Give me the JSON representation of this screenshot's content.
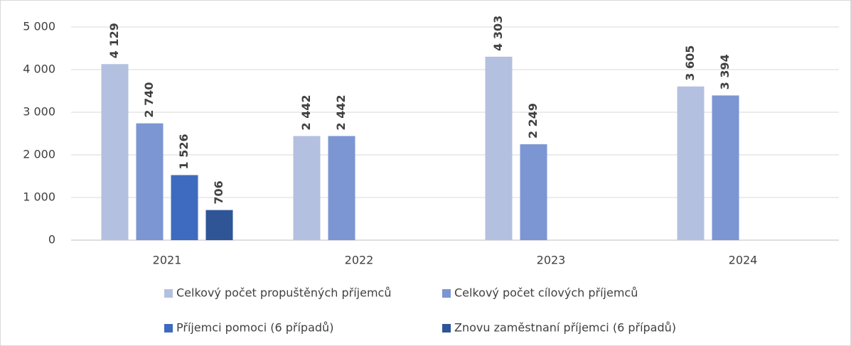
{
  "chart_data": {
    "type": "bar",
    "categories": [
      "2021",
      "2022",
      "2023",
      "2024"
    ],
    "series": [
      {
        "name": "Celkový počet propuštěných příjemců",
        "color": "#b4c0e0",
        "values": [
          4129,
          2442,
          4303,
          3605
        ],
        "value_labels": [
          "4 129",
          "2 442",
          "4 303",
          "3 605"
        ]
      },
      {
        "name": "Celkový počet cílových příjemců",
        "color": "#7b96d2",
        "values": [
          2740,
          2442,
          2249,
          3394
        ],
        "value_labels": [
          "2 740",
          "2 442",
          "2 249",
          "3 394"
        ]
      },
      {
        "name": "Příjemci pomoci (6 případů)",
        "color": "#3e6bbf",
        "values": [
          1526,
          null,
          null,
          null
        ],
        "value_labels": [
          "1 526",
          null,
          null,
          null
        ]
      },
      {
        "name": "Znovu zaměstnaní příjemci (6 případů)",
        "color": "#2f5597",
        "values": [
          706,
          null,
          null,
          null
        ],
        "value_labels": [
          "706",
          null,
          null,
          null
        ]
      }
    ],
    "ylim": [
      0,
      5000
    ],
    "yticks": [
      0,
      {
        "value": 1000,
        "label": "1 000"
      },
      {
        "value": 2000,
        "label": "2 000"
      },
      {
        "value": 3000,
        "label": "3 000"
      },
      {
        "value": 4000,
        "label": "4 000"
      },
      {
        "value": 5000,
        "label": "5 000"
      }
    ],
    "grid": true
  }
}
